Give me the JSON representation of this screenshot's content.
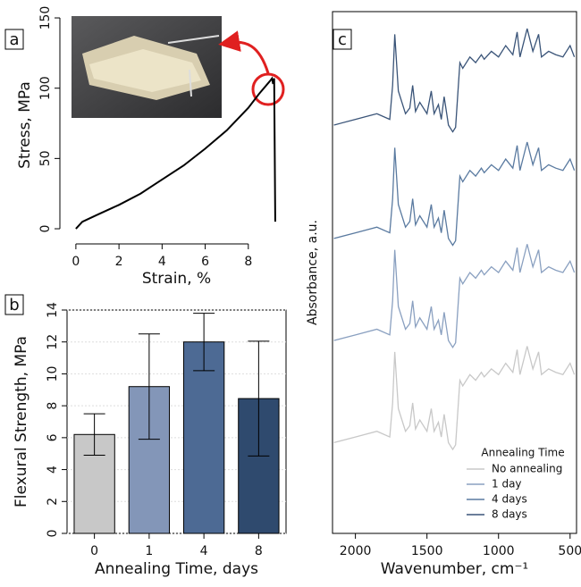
{
  "chart_data": [
    {
      "type": "line",
      "panel_label": "a",
      "xlabel": "Strain, %",
      "ylabel": "Stress, MPa",
      "x": [
        0,
        0.3,
        1,
        2,
        3,
        3.5,
        4,
        5,
        6,
        7,
        8,
        8.5,
        9,
        9.1,
        9.15,
        9.2,
        9.25
      ],
      "values": [
        0,
        5,
        10,
        17,
        25,
        30,
        35,
        45,
        57,
        70,
        86,
        96,
        105,
        107,
        103,
        107,
        5
      ],
      "color": "#000000",
      "xlim": [
        -0.41,
        9.75
      ],
      "ylim": [
        -5.7,
        153.2
      ],
      "xticks": [
        0,
        2,
        4,
        6,
        8
      ],
      "yticks": [
        0,
        50,
        100,
        150
      ]
    },
    {
      "type": "bar",
      "panel_label": "b",
      "xlabel": "Annealing Time, days",
      "ylabel": "Flexural Strength, MPa",
      "categories": [
        "0",
        "1",
        "4",
        "8"
      ],
      "values": [
        6.2,
        9.2,
        12.0,
        8.45
      ],
      "errors": [
        1.3,
        3.3,
        1.8,
        3.6
      ],
      "colors": [
        "#c8c8c8",
        "#8396b8",
        "#4d6a94",
        "#2f4a6e"
      ],
      "ylim": [
        0,
        14
      ],
      "yticks": [
        0,
        2,
        4,
        6,
        8,
        10,
        12,
        14
      ],
      "grid": true
    },
    {
      "type": "line",
      "panel_label": "c",
      "xlabel": "Wavenumber, cm⁻¹",
      "ylabel": "Absorbance, a.u.",
      "legend_title": "Annealing Time",
      "legend": "lower right",
      "x": [
        2150,
        2000,
        1850,
        1760,
        1740,
        1725,
        1700,
        1650,
        1620,
        1600,
        1580,
        1550,
        1500,
        1470,
        1450,
        1420,
        1400,
        1380,
        1350,
        1320,
        1300,
        1270,
        1250,
        1200,
        1160,
        1120,
        1100,
        1050,
        1000,
        950,
        900,
        870,
        850,
        800,
        760,
        720,
        700,
        650,
        600,
        550,
        500,
        470
      ],
      "series": [
        {
          "name": "No annealing",
          "color": "#c8c8c8",
          "values": [
            0.8,
            0.85,
            0.9,
            0.85,
            1.15,
            1.6,
            1.1,
            0.9,
            0.95,
            1.15,
            0.92,
            1,
            0.9,
            1.1,
            0.9,
            0.98,
            0.85,
            1.05,
            0.8,
            0.74,
            0.78,
            1.35,
            1.3,
            1.4,
            1.35,
            1.42,
            1.38,
            1.45,
            1.4,
            1.5,
            1.42,
            1.62,
            1.4,
            1.65,
            1.45,
            1.6,
            1.4,
            1.45,
            1.42,
            1.4,
            1.5,
            1.4
          ]
        },
        {
          "name": "1 day",
          "color": "#8aa0c0",
          "values": [
            1.7,
            1.75,
            1.8,
            1.75,
            2.05,
            2.5,
            2,
            1.8,
            1.85,
            2.05,
            1.82,
            1.9,
            1.8,
            2,
            1.8,
            1.88,
            1.75,
            1.95,
            1.7,
            1.64,
            1.68,
            2.25,
            2.2,
            2.3,
            2.25,
            2.32,
            2.28,
            2.35,
            2.3,
            2.4,
            2.32,
            2.52,
            2.3,
            2.55,
            2.35,
            2.5,
            2.3,
            2.35,
            2.32,
            2.3,
            2.4,
            2.3
          ]
        },
        {
          "name": "4 days",
          "color": "#5a7aa0",
          "values": [
            2.6,
            2.65,
            2.7,
            2.65,
            2.95,
            3.4,
            2.9,
            2.7,
            2.75,
            2.95,
            2.72,
            2.8,
            2.7,
            2.9,
            2.7,
            2.78,
            2.65,
            2.85,
            2.6,
            2.54,
            2.58,
            3.15,
            3.1,
            3.2,
            3.15,
            3.22,
            3.18,
            3.25,
            3.2,
            3.3,
            3.22,
            3.42,
            3.2,
            3.45,
            3.25,
            3.4,
            3.2,
            3.25,
            3.22,
            3.2,
            3.3,
            3.2
          ]
        },
        {
          "name": "8 days",
          "color": "#3a5478",
          "values": [
            3.6,
            3.65,
            3.7,
            3.65,
            3.95,
            4.4,
            3.9,
            3.7,
            3.75,
            3.95,
            3.72,
            3.8,
            3.7,
            3.9,
            3.7,
            3.78,
            3.65,
            3.85,
            3.6,
            3.54,
            3.58,
            4.15,
            4.1,
            4.2,
            4.15,
            4.22,
            4.18,
            4.25,
            4.2,
            4.3,
            4.22,
            4.42,
            4.2,
            4.45,
            4.25,
            4.4,
            4.2,
            4.25,
            4.22,
            4.2,
            4.3,
            4.2
          ]
        }
      ],
      "xlim": [
        2160,
        455
      ],
      "ylim": [
        0,
        4.6
      ],
      "xticks": [
        2000,
        1500,
        1000,
        500
      ]
    }
  ]
}
